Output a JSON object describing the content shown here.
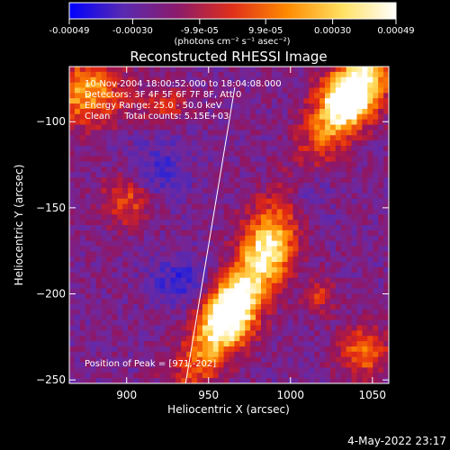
{
  "colorbar": {
    "tick_labels": [
      "-0.00049",
      "-0.00030",
      "-9.9e-05",
      "9.9e-05",
      "0.00030",
      "0.00049"
    ],
    "tick_values": [
      -0.00049,
      -0.0003,
      -9.9e-05,
      9.9e-05,
      0.0003,
      0.00049
    ],
    "range": [
      -0.00049,
      0.00049
    ],
    "unit_label": "(photons cm⁻² s⁻¹ asec⁻²)",
    "gradient_colors": [
      "#0000ff",
      "#5a2ab0",
      "#8c1a6a",
      "#e0301a",
      "#ff8a00",
      "#ffe060",
      "#ffffff"
    ]
  },
  "chart_data": {
    "type": "heatmap",
    "title": "Reconstructed RHESSI Image",
    "xlabel": "Heliocentric X (arcsec)",
    "ylabel": "Heliocentric Y (arcsec)",
    "xlim": [
      865,
      1060
    ],
    "ylim": [
      -252,
      -68
    ],
    "x_ticks": [
      900,
      950,
      1000,
      1050
    ],
    "y_ticks": [
      -100,
      -150,
      -200,
      -250
    ],
    "x_tick_labels": [
      "900",
      "950",
      "1000",
      "1050"
    ],
    "y_tick_labels": [
      "−100",
      "−150",
      "−200",
      "−250"
    ],
    "peak_position": [
      971,
      -202
    ],
    "limb_line": [
      [
        936,
        -252
      ],
      [
        966,
        -80
      ]
    ],
    "info_lines": [
      "10-Nov-2004 18:00:52.000 to 18:04:08.000",
      "Detectors: 3F 4F 5F 6F 7F 8F, Att 0",
      "Energy Range: 25.0 - 50.0 keV",
      "Clean     Total counts: 5.15E+03"
    ],
    "peak_label": "Position of Peak = [971,-202]"
  },
  "footer": {
    "timestamp": "4-May-2022 23:17"
  }
}
